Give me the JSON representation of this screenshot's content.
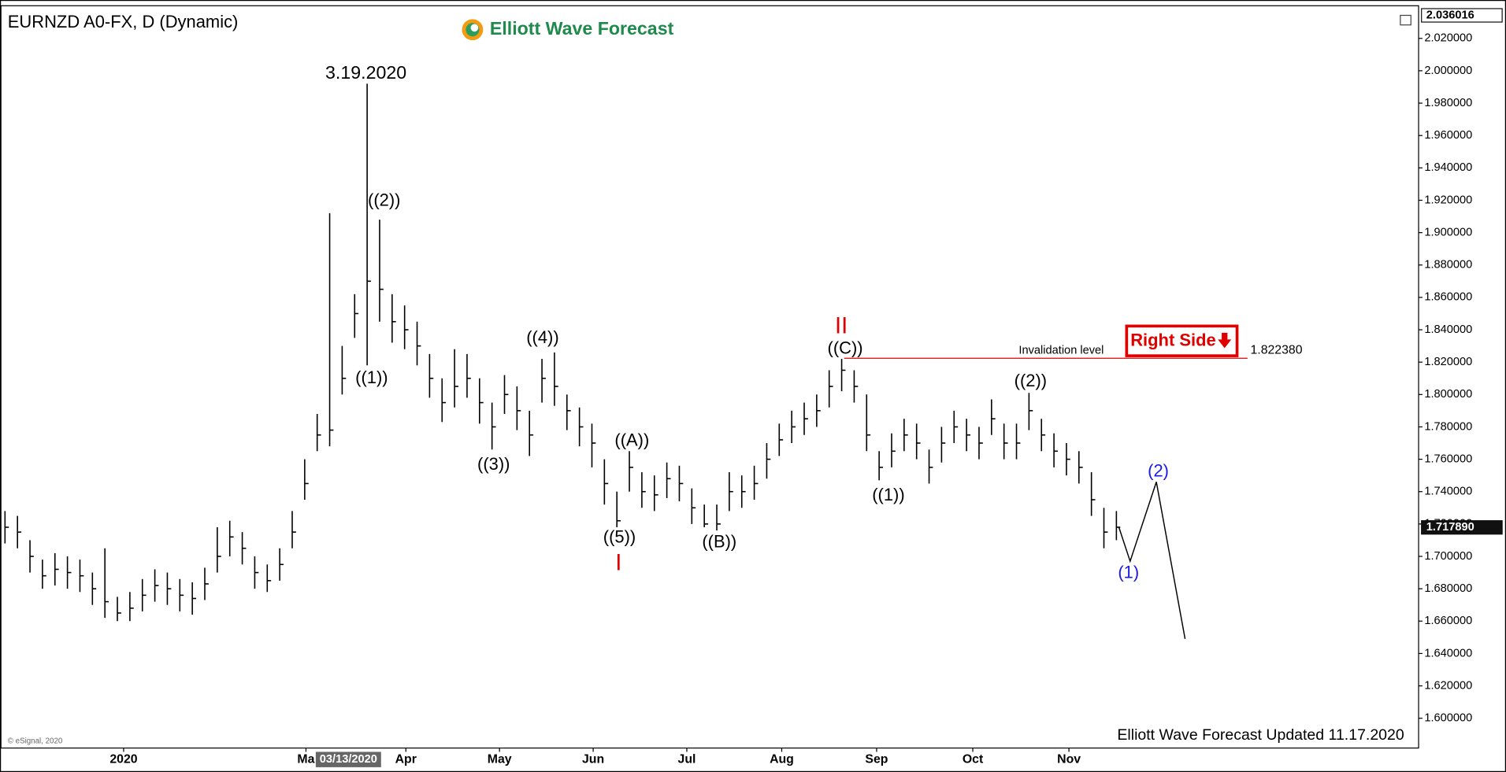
{
  "chart_data": {
    "type": "ohlc",
    "title": "EURNZD A0-FX, D (Dynamic)",
    "brand": "Elliott Wave Forecast",
    "footer": "Elliott Wave Forecast Updated 11.17.2020",
    "copyright": "© eSignal, 2020",
    "color": "#000000",
    "high": [
      1.728,
      1.725,
      1.71,
      1.698,
      1.702,
      1.7,
      1.698,
      1.69,
      1.705,
      1.675,
      1.678,
      1.686,
      1.692,
      1.69,
      1.686,
      1.684,
      1.693,
      1.718,
      1.722,
      1.715,
      1.7,
      1.695,
      1.705,
      1.728,
      1.76,
      1.788,
      1.912,
      1.83,
      1.862,
      1.992,
      1.908,
      1.862,
      1.855,
      1.845,
      1.825,
      1.81,
      1.828,
      1.825,
      1.81,
      1.795,
      1.812,
      1.805,
      1.79,
      1.822,
      1.826,
      1.8,
      1.792,
      1.782,
      1.76,
      1.74,
      1.765,
      1.752,
      1.75,
      1.758,
      1.756,
      1.742,
      1.732,
      1.732,
      1.752,
      1.75,
      1.756,
      1.77,
      1.782,
      1.79,
      1.795,
      1.8,
      1.815,
      1.822,
      1.815,
      1.8,
      1.765,
      1.776,
      1.785,
      1.782,
      1.766,
      1.78,
      1.79,
      1.785,
      1.78,
      1.797,
      1.782,
      1.782,
      1.801,
      1.785,
      1.776,
      1.77,
      1.765,
      1.752,
      1.73,
      1.728
    ],
    "low": [
      1.708,
      1.705,
      1.69,
      1.68,
      1.682,
      1.68,
      1.678,
      1.67,
      1.662,
      1.66,
      1.66,
      1.666,
      1.672,
      1.67,
      1.666,
      1.664,
      1.673,
      1.69,
      1.7,
      1.695,
      1.68,
      1.678,
      1.685,
      1.705,
      1.735,
      1.765,
      1.768,
      1.8,
      1.835,
      1.818,
      1.845,
      1.832,
      1.828,
      1.818,
      1.798,
      1.783,
      1.792,
      1.798,
      1.782,
      1.766,
      1.788,
      1.778,
      1.762,
      1.795,
      1.793,
      1.778,
      1.768,
      1.755,
      1.732,
      1.718,
      1.74,
      1.73,
      1.728,
      1.736,
      1.734,
      1.72,
      1.718,
      1.716,
      1.728,
      1.73,
      1.735,
      1.748,
      1.762,
      1.77,
      1.775,
      1.78,
      1.792,
      1.802,
      1.795,
      1.765,
      1.747,
      1.755,
      1.765,
      1.76,
      1.745,
      1.758,
      1.77,
      1.765,
      1.76,
      1.775,
      1.76,
      1.76,
      1.778,
      1.765,
      1.755,
      1.75,
      1.745,
      1.725,
      1.705,
      1.71
    ],
    "close": [
      1.718,
      1.715,
      1.7,
      1.688,
      1.692,
      1.69,
      1.688,
      1.68,
      1.672,
      1.665,
      1.668,
      1.676,
      1.682,
      1.68,
      1.676,
      1.674,
      1.683,
      1.7,
      1.712,
      1.705,
      1.69,
      1.685,
      1.695,
      1.715,
      1.745,
      1.775,
      1.778,
      1.81,
      1.85,
      1.87,
      1.865,
      1.845,
      1.84,
      1.83,
      1.81,
      1.795,
      1.805,
      1.81,
      1.795,
      1.78,
      1.8,
      1.79,
      1.775,
      1.81,
      1.805,
      1.79,
      1.78,
      1.77,
      1.745,
      1.722,
      1.755,
      1.74,
      1.738,
      1.748,
      1.745,
      1.73,
      1.72,
      1.72,
      1.74,
      1.74,
      1.745,
      1.76,
      1.772,
      1.78,
      1.785,
      1.79,
      1.805,
      1.815,
      1.805,
      1.775,
      1.755,
      1.765,
      1.775,
      1.77,
      1.755,
      1.77,
      1.78,
      1.775,
      1.77,
      1.785,
      1.77,
      1.77,
      1.79,
      1.775,
      1.765,
      1.76,
      1.755,
      1.735,
      1.715,
      1.718
    ],
    "xlim": [
      -0.4,
      113.2
    ],
    "xticks": [
      {
        "value": 9.5,
        "label": "2020"
      },
      {
        "value": 24.1,
        "label": "Ma"
      },
      {
        "value": 32.1,
        "label": "Apr"
      },
      {
        "value": 39.6,
        "label": "May"
      },
      {
        "value": 47.1,
        "label": "Jun"
      },
      {
        "value": 54.6,
        "label": "Jul"
      },
      {
        "value": 62.2,
        "label": "Aug"
      },
      {
        "value": 69.8,
        "label": "Sep"
      },
      {
        "value": 77.5,
        "label": "Oct"
      },
      {
        "value": 85.2,
        "label": "Nov"
      }
    ],
    "cursor_label": {
      "value": 27.5,
      "label": "03/13/2020"
    },
    "ylim": [
      1.5816,
      2.036016
    ],
    "yticks": [
      {
        "value": 1.6,
        "label": "1.600000"
      },
      {
        "value": 1.62,
        "label": "1.620000"
      },
      {
        "value": 1.64,
        "label": "1.640000"
      },
      {
        "value": 1.66,
        "label": "1.660000"
      },
      {
        "value": 1.68,
        "label": "1.680000"
      },
      {
        "value": 1.7,
        "label": "1.700000"
      },
      {
        "value": 1.72,
        "label": "1.720000"
      },
      {
        "value": 1.74,
        "label": "1.740000"
      },
      {
        "value": 1.76,
        "label": "1.760000"
      },
      {
        "value": 1.78,
        "label": "1.780000"
      },
      {
        "value": 1.8,
        "label": "1.800000"
      },
      {
        "value": 1.82,
        "label": "1.820000"
      },
      {
        "value": 1.84,
        "label": "1.840000"
      },
      {
        "value": 1.86,
        "label": "1.860000"
      },
      {
        "value": 1.88,
        "label": "1.880000"
      },
      {
        "value": 1.9,
        "label": "1.900000"
      },
      {
        "value": 1.92,
        "label": "1.920000"
      },
      {
        "value": 1.94,
        "label": "1.940000"
      },
      {
        "value": 1.96,
        "label": "1.960000"
      },
      {
        "value": 1.98,
        "label": "1.980000"
      },
      {
        "value": 2.0,
        "label": "2.000000"
      },
      {
        "value": 2.02,
        "label": "2.020000"
      }
    ],
    "price_markers": [
      {
        "value": 2.036016,
        "label": "2.036016"
      },
      {
        "value": 1.71789,
        "label": "1.717890"
      }
    ],
    "invalidation": {
      "text": "Invalidation level",
      "value": 1.82238,
      "label": "1.822380",
      "x": [
        67.2,
        99.5
      ]
    },
    "projection": {
      "x": [
        89.2,
        90.1,
        92.2,
        94.5
      ],
      "y": [
        1.718,
        1.697,
        1.746,
        1.649
      ]
    },
    "badge": "Right Side",
    "annotations": [
      "3.19.2020",
      "((2))",
      "((1))",
      "((4))",
      "((3))",
      "((A))",
      "((5))",
      "I",
      "((B))",
      "II",
      "((C))",
      "((1))",
      "((2))",
      "(1)",
      "(2)"
    ]
  }
}
